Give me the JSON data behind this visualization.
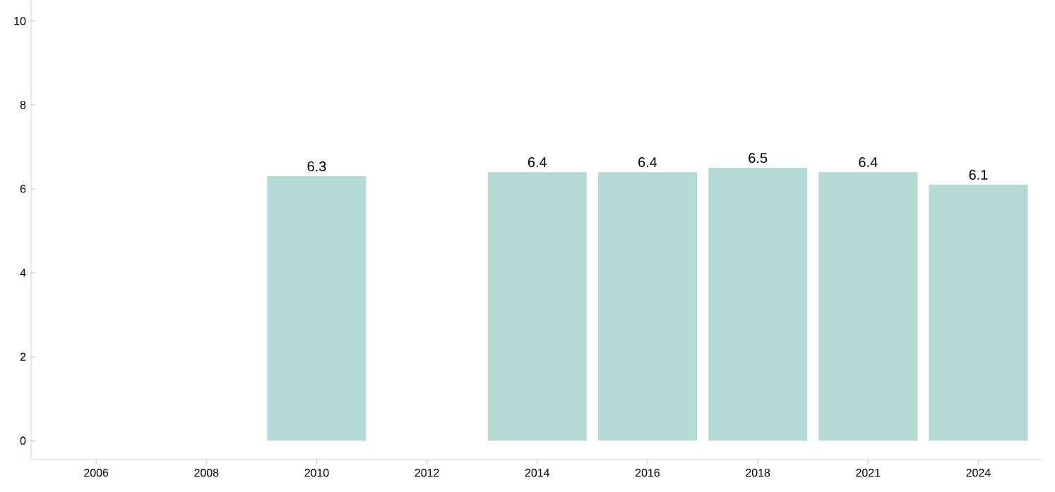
{
  "chart_data": {
    "type": "bar",
    "categories": [
      "2006",
      "2008",
      "2010",
      "2012",
      "2014",
      "2016",
      "2018",
      "2021",
      "2024"
    ],
    "values": [
      null,
      null,
      6.3,
      null,
      6.4,
      6.4,
      6.5,
      6.4,
      6.1
    ],
    "color": "#b5d9d3",
    "ylim": [
      -0.45,
      10.5
    ],
    "yticks": [
      0,
      2,
      4,
      6,
      8,
      10
    ],
    "data_labels": true
  }
}
